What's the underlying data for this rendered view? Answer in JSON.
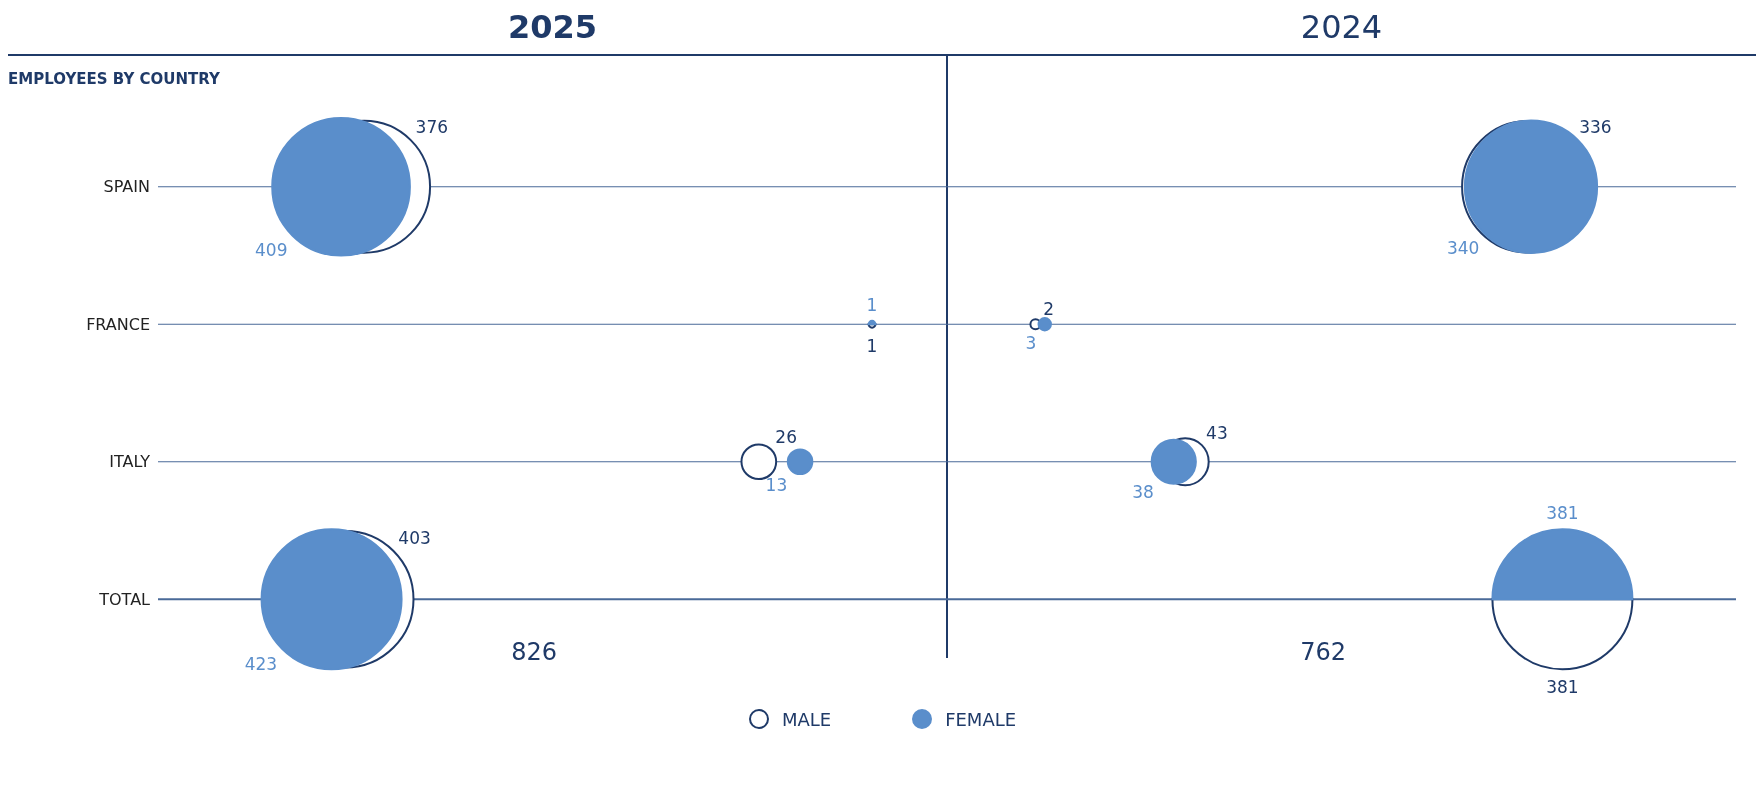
{
  "chart_data": {
    "type": "other",
    "title": "EMPLOYEES BY COUNTRY",
    "categories": [
      "SPAIN",
      "FRANCE",
      "ITALY",
      "TOTAL"
    ],
    "series": [
      {
        "name": "MALE",
        "color": "#1f3a68",
        "values": [
          376,
          1,
          26,
          403
        ]
      },
      {
        "name": "FEMALE",
        "color": "#5a8ecb",
        "values": [
          409,
          1,
          13,
          423
        ]
      },
      {
        "color": "#1f3a68",
        "values": [
          336,
          2,
          43,
          381
        ]
      },
      {
        "color": "#5a8ecb",
        "values": [
          340,
          3,
          38,
          381
        ]
      }
    ],
    "data_labels": true,
    "legend": "bottom",
    "annotations": [
      "2025",
      "2024",
      "826",
      "762"
    ]
  }
}
